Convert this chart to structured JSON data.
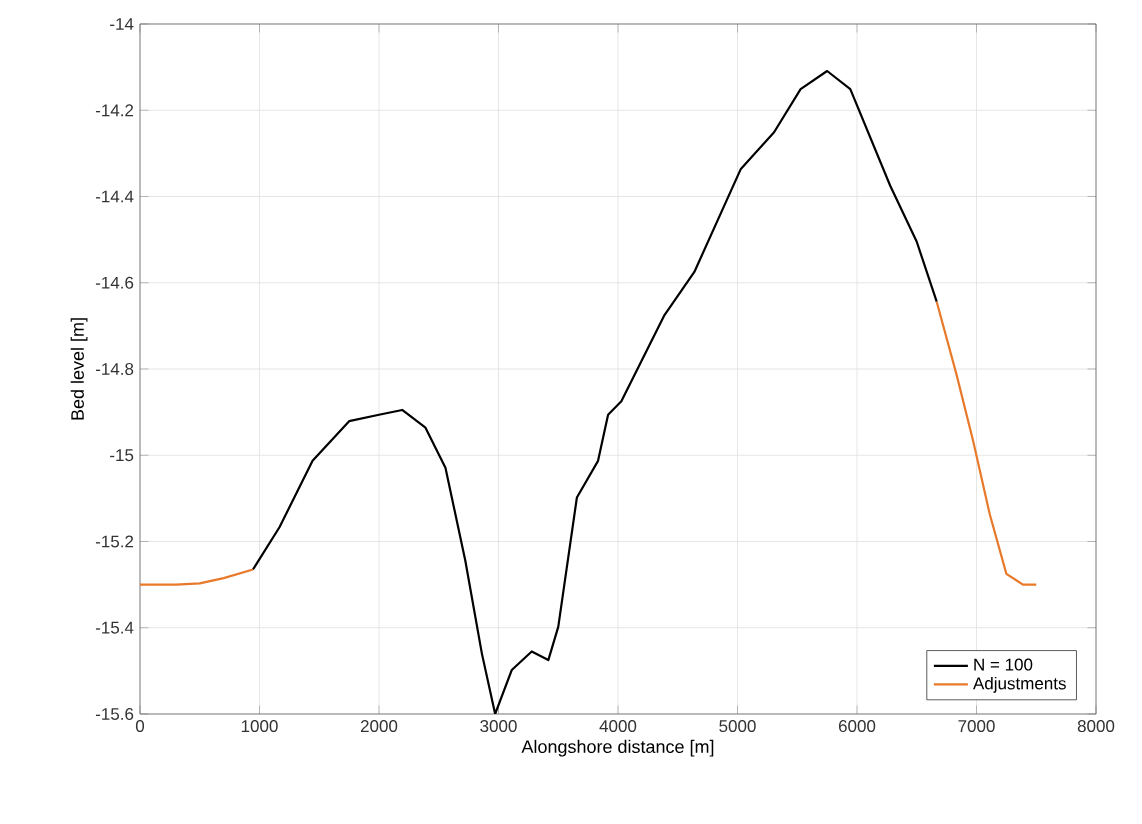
{
  "chart_data": {
    "type": "line",
    "xlabel": "Alongshore distance [m]",
    "ylabel": "Bed level [m]",
    "xlim": [
      0,
      8000
    ],
    "ylim": [
      -15.6,
      -14
    ],
    "xticks": [
      0,
      1000,
      2000,
      3000,
      4000,
      5000,
      6000,
      7000,
      8000
    ],
    "yticks": [
      -15.6,
      -15.4,
      -15.2,
      -15,
      -14.8,
      -14.6,
      -14.4,
      -14.2,
      -14
    ],
    "grid": true,
    "legend": "bottom right",
    "series": [
      {
        "name": "N = 100",
        "color": "#000000",
        "x": [
          945,
          1167,
          1444,
          1750,
          2000,
          2194,
          2389,
          2556,
          2722,
          2861,
          2972,
          3111,
          3278,
          3417,
          3500,
          3656,
          3833,
          3917,
          4028,
          4389,
          4639,
          5028,
          5306,
          5528,
          5750,
          5944,
          6278,
          6500,
          6667
        ],
        "values": [
          -15.265,
          -15.167,
          -15.013,
          -14.921,
          -14.906,
          -14.895,
          -14.936,
          -15.029,
          -15.244,
          -15.46,
          -15.6,
          -15.498,
          -15.455,
          -15.475,
          -15.398,
          -15.098,
          -15.013,
          -14.906,
          -14.875,
          -14.675,
          -14.575,
          -14.336,
          -14.251,
          -14.151,
          -14.109,
          -14.151,
          -14.375,
          -14.505,
          -14.644
        ]
      },
      {
        "name": "Adjustments",
        "color": "#e8792a",
        "x": [
          0,
          300,
          500,
          700,
          945,
          3000,
          6667,
          6833,
          6972,
          7111,
          7250,
          7389,
          7500
        ],
        "values": [
          -15.3,
          -15.3,
          -15.297,
          -15.285,
          -15.265,
          null,
          -14.644,
          -14.813,
          -14.967,
          -15.137,
          -15.275,
          -15.3,
          -15.3
        ]
      }
    ]
  }
}
